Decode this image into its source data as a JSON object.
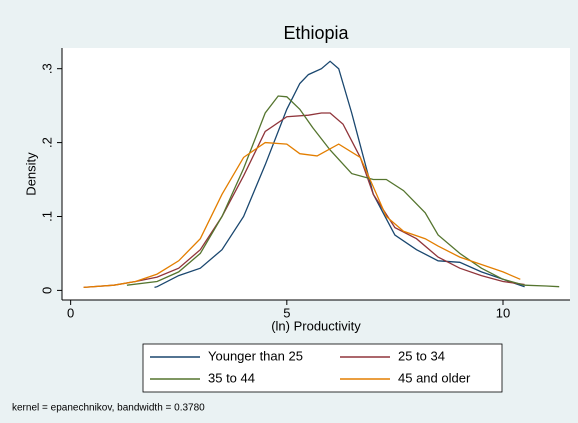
{
  "chart_data": {
    "type": "line",
    "title": "Ethiopia",
    "xlabel": "(ln) Productivity",
    "ylabel": "Density",
    "note": "kernel = epanechnikov, bandwidth = 0.3780",
    "xlim": [
      -0.2,
      11.55
    ],
    "ylim": [
      -0.013,
      0.328
    ],
    "xticks": [
      0,
      5,
      10
    ],
    "yticks": [
      0,
      {
        "value": 0.1,
        "label": ".1"
      },
      {
        "value": 0.2,
        "label": ".2"
      },
      {
        "value": 0.3,
        "label": ".3"
      }
    ],
    "grid": false,
    "legend": "bottom",
    "series": [
      {
        "name": "Younger than 25",
        "color": "#1a476f",
        "x": [
          1.94,
          2,
          2.5,
          3,
          3.5,
          4,
          4.5,
          5,
          5.3,
          5.5,
          5.8,
          6.0,
          6.2,
          6.5,
          7,
          7.5,
          8,
          8.5,
          9,
          9.5,
          10,
          10.5
        ],
        "values": [
          0.004,
          0.005,
          0.02,
          0.03,
          0.055,
          0.1,
          0.17,
          0.245,
          0.28,
          0.292,
          0.3,
          0.31,
          0.3,
          0.24,
          0.13,
          0.075,
          0.055,
          0.04,
          0.038,
          0.025,
          0.015,
          0.005
        ]
      },
      {
        "name": "25 to 34",
        "color": "#90353b",
        "x": [
          0.3,
          1,
          1.5,
          2,
          2.5,
          3,
          3.5,
          4,
          4.5,
          5,
          5.5,
          5.8,
          6,
          6.3,
          6.7,
          7,
          7.5,
          8,
          8.5,
          9,
          9.5,
          10,
          10.5
        ],
        "values": [
          0.004,
          0.007,
          0.012,
          0.018,
          0.03,
          0.055,
          0.1,
          0.155,
          0.215,
          0.235,
          0.237,
          0.24,
          0.24,
          0.225,
          0.18,
          0.13,
          0.085,
          0.07,
          0.045,
          0.03,
          0.02,
          0.012,
          0.008
        ]
      },
      {
        "name": "35 to 44",
        "color": "#55752f",
        "x": [
          1.3,
          2,
          2.5,
          3,
          3.5,
          4,
          4.5,
          4.8,
          5,
          5.3,
          5.6,
          6,
          6.5,
          7,
          7.3,
          7.7,
          8.2,
          8.5,
          9,
          9.5,
          10,
          10.5,
          11,
          11.3
        ],
        "values": [
          0.007,
          0.012,
          0.025,
          0.05,
          0.1,
          0.165,
          0.24,
          0.263,
          0.262,
          0.245,
          0.22,
          0.19,
          0.158,
          0.15,
          0.15,
          0.135,
          0.105,
          0.075,
          0.05,
          0.03,
          0.015,
          0.007,
          0.006,
          0.005
        ]
      },
      {
        "name": "45 and older",
        "color": "#e37e00",
        "x": [
          0.3,
          1,
          1.5,
          2,
          2.5,
          3,
          3.5,
          4,
          4.5,
          5,
          5.3,
          5.7,
          6.2,
          6.7,
          7,
          7.3,
          7.7,
          8.2,
          8.5,
          9,
          9.5,
          10,
          10.4
        ],
        "values": [
          0.004,
          0.007,
          0.012,
          0.022,
          0.04,
          0.07,
          0.13,
          0.18,
          0.2,
          0.198,
          0.185,
          0.182,
          0.198,
          0.18,
          0.14,
          0.1,
          0.08,
          0.07,
          0.06,
          0.045,
          0.035,
          0.025,
          0.015
        ]
      }
    ]
  }
}
